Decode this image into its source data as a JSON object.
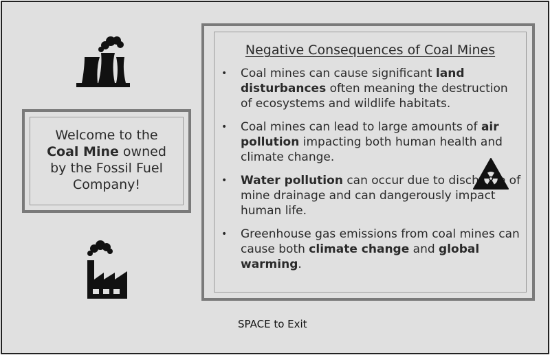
{
  "welcome": {
    "line1": "Welcome to the",
    "mine_name": "Coal Mine",
    "line2_rest": " owned",
    "line3": "by the Fossil Fuel",
    "line4": "Company!"
  },
  "info": {
    "title": "Negative Consequences of Coal Mines",
    "bullets": [
      {
        "pre": "Coal mines can cause significant ",
        "bold": "land disturbances",
        "post": " often meaning the destruction of ecosystems and wildlife habitats."
      },
      {
        "pre": "Coal mines can lead to large amounts of ",
        "bold": "air pollution",
        "post": " impacting both human health and climate change."
      },
      {
        "pre": "",
        "bold": "Water pollution",
        "post": " can occur due to discharge of mine drainage and can dangerously impact human life."
      },
      {
        "pre": "Greenhouse gas emissions from coal mines can cause both ",
        "bold": "climate change",
        "mid": " and ",
        "bold2": "global warming",
        "post": "."
      }
    ],
    "bullet_symbol": "•"
  },
  "exit_hint": "SPACE to Exit",
  "icons": {
    "top_left": "power-plant-icon",
    "bottom_left": "factory-icon",
    "right": "radiation-warning-icon"
  },
  "colors": {
    "background": "#e0e0e0",
    "border": "#7a7a7a",
    "text": "#2a2a2a"
  }
}
